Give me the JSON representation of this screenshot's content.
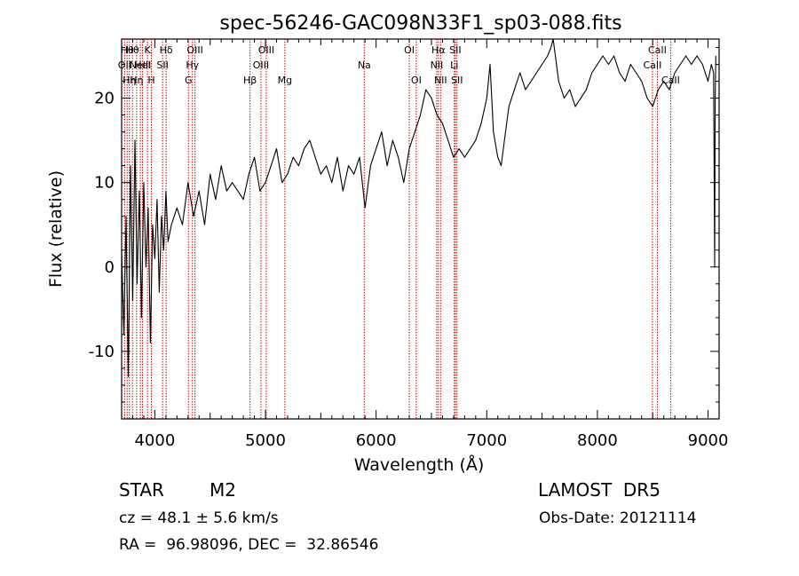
{
  "chart_data": {
    "type": "line",
    "title": "spec-56246-GAC098N33F1_sp03-088.fits",
    "xlabel": "Wavelength (Å)",
    "ylabel": "Flux (relative)",
    "xlim": [
      3700,
      9100
    ],
    "ylim": [
      -18,
      27
    ],
    "x_ticks": [
      4000,
      5000,
      6000,
      7000,
      8000,
      9000
    ],
    "y_ticks": [
      -10,
      0,
      10,
      20
    ],
    "grid": false,
    "series": [
      {
        "x": [
          3700,
          3720,
          3740,
          3760,
          3780,
          3800,
          3820,
          3840,
          3860,
          3880,
          3900,
          3920,
          3940,
          3960,
          3980,
          4000,
          4020,
          4040,
          4060,
          4080,
          4100,
          4120,
          4150,
          4200,
          4250,
          4300,
          4350,
          4400,
          4450,
          4500,
          4550,
          4600,
          4650,
          4700,
          4750,
          4800,
          4850,
          4900,
          4950,
          5000,
          5050,
          5100,
          5150,
          5200,
          5250,
          5300,
          5350,
          5400,
          5450,
          5500,
          5550,
          5600,
          5650,
          5700,
          5750,
          5800,
          5850,
          5900,
          5950,
          6000,
          6050,
          6100,
          6150,
          6200,
          6250,
          6300,
          6350,
          6400,
          6450,
          6500,
          6550,
          6600,
          6650,
          6700,
          6750,
          6800,
          6850,
          6900,
          6950,
          7000,
          7030,
          7060,
          7100,
          7130,
          7160,
          7200,
          7250,
          7300,
          7350,
          7400,
          7450,
          7500,
          7550,
          7580,
          7600,
          7650,
          7700,
          7750,
          7800,
          7850,
          7900,
          7950,
          8000,
          8050,
          8100,
          8150,
          8200,
          8250,
          8300,
          8350,
          8400,
          8450,
          8500,
          8550,
          8600,
          8650,
          8700,
          8750,
          8800,
          8850,
          8900,
          8950,
          9000,
          9030,
          9050,
          9060,
          9065,
          9070
        ],
        "y": [
          2,
          -8,
          6,
          -13,
          12,
          -4,
          15,
          -2,
          9,
          -6,
          10,
          0,
          7,
          -9,
          5,
          1,
          8,
          -3,
          6,
          2,
          9,
          3,
          5,
          7,
          5,
          10,
          6,
          9,
          5,
          11,
          8,
          12,
          9,
          10,
          9,
          8,
          11,
          13,
          9,
          10,
          12,
          14,
          10,
          11,
          13,
          12,
          14,
          15,
          13,
          11,
          12,
          10,
          13,
          9,
          12,
          11,
          13,
          7,
          12,
          14,
          16,
          12,
          15,
          13,
          10,
          14,
          16,
          18,
          21,
          20,
          18,
          17,
          15,
          13,
          14,
          13,
          14,
          15,
          17,
          20,
          24,
          16,
          13,
          12,
          15,
          19,
          21,
          23,
          21,
          22,
          23,
          24,
          25,
          26,
          27,
          22,
          20,
          21,
          19,
          20,
          21,
          23,
          24,
          25,
          24,
          25,
          23,
          22,
          24,
          23,
          22,
          20,
          19,
          21,
          22,
          21,
          23,
          24,
          25,
          24,
          25,
          24,
          22,
          24,
          23,
          0,
          20,
          25
        ]
      }
    ],
    "lines": [
      {
        "x": 3727,
        "label": "OII",
        "row": 1
      },
      {
        "x": 3750,
        "label": "Hθ",
        "row": 0
      },
      {
        "x": 3770,
        "label": "Hη",
        "row": 2
      },
      {
        "x": 3798,
        "label": "Hθ",
        "row": 0
      },
      {
        "x": 3835,
        "label": "Hη",
        "row": 2
      },
      {
        "x": 3869,
        "label": "NeIII",
        "row": 1
      },
      {
        "x": 3889,
        "label": "HeI",
        "row": 1
      },
      {
        "x": 3934,
        "label": "K",
        "row": 0
      },
      {
        "x": 3969,
        "label": "H",
        "row": 2
      },
      {
        "x": 4070,
        "label": "SII",
        "row": 1
      },
      {
        "x": 4102,
        "label": "Hδ",
        "row": 0
      },
      {
        "x": 4304,
        "label": "G",
        "row": 2
      },
      {
        "x": 4340,
        "label": "Hγ",
        "row": 1
      },
      {
        "x": 4363,
        "label": "OIII",
        "row": 0
      },
      {
        "x": 4861,
        "label": "Hβ",
        "row": 2
      },
      {
        "x": 4959,
        "label": "OIII",
        "row": 1
      },
      {
        "x": 5007,
        "label": "OIII",
        "row": 0
      },
      {
        "x": 5175,
        "label": "Mg",
        "row": 2
      },
      {
        "x": 5893,
        "label": "Na",
        "row": 1
      },
      {
        "x": 6300,
        "label": "OI",
        "row": 0
      },
      {
        "x": 6363,
        "label": "OI",
        "row": 2
      },
      {
        "x": 6548,
        "label": "NII",
        "row": 1
      },
      {
        "x": 6563,
        "label": "Hα",
        "row": 0
      },
      {
        "x": 6583,
        "label": "NII",
        "row": 2
      },
      {
        "x": 6707,
        "label": "Li",
        "row": 1
      },
      {
        "x": 6716,
        "label": "SII",
        "row": 0
      },
      {
        "x": 6731,
        "label": "SII",
        "row": 2
      },
      {
        "x": 8498,
        "label": "CaII",
        "row": 1
      },
      {
        "x": 8542,
        "label": "CaII",
        "row": 0
      },
      {
        "x": 8662,
        "label": "CaII",
        "row": 2
      }
    ]
  },
  "info": {
    "class_type": "STAR",
    "subclass": "M2",
    "survey": "LAMOST  DR5",
    "redshift": "cz = 48.1 ± 5.6 km/s",
    "obs_date": "Obs-Date: 20121114",
    "coords": "RA =  96.98096, DEC =  32.86546"
  },
  "colors": {
    "line_marker": "#cc0000",
    "spectrum": "#000000",
    "background": "#ffffff"
  }
}
